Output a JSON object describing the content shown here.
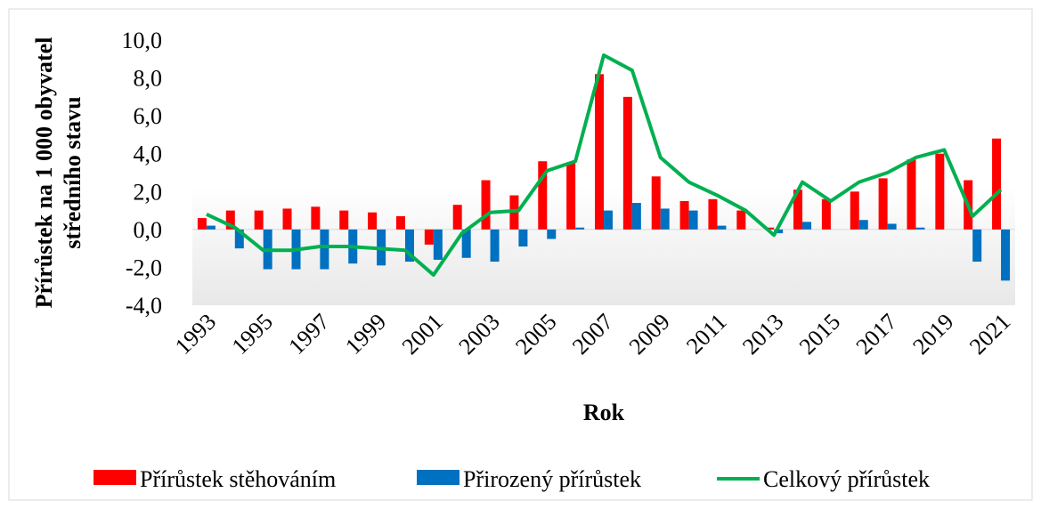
{
  "chart_data": {
    "type": "bar_line",
    "y_label": [
      "Přírůstek na 1 000 obyvatel",
      "středního stavu"
    ],
    "x_label": "Rok",
    "categories": [
      "1993",
      null,
      "1995",
      null,
      "1997",
      null,
      "1999",
      null,
      "2001",
      null,
      "2003",
      null,
      "2005",
      null,
      "2007",
      null,
      "2009",
      null,
      "2011",
      null,
      "2013",
      null,
      "2015",
      null,
      "2017",
      null,
      "2019",
      null,
      "2021"
    ],
    "series": [
      {
        "name": "Přírůstek stěhováním",
        "type": "bar",
        "color": "#ff0000",
        "values": [
          0.6,
          1.0,
          1.0,
          1.1,
          1.2,
          1.0,
          0.9,
          0.7,
          -0.8,
          1.3,
          2.6,
          1.8,
          3.6,
          3.5,
          8.2,
          7.0,
          2.8,
          1.5,
          1.6,
          1.0,
          0.1,
          2.1,
          1.6,
          2.0,
          2.7,
          3.7,
          4.0,
          2.6,
          4.8
        ]
      },
      {
        "name": "Přirozený přírůstek",
        "type": "bar",
        "color": "#0070c0",
        "values": [
          0.2,
          -1.0,
          -2.1,
          -2.1,
          -2.1,
          -1.8,
          -1.9,
          -1.7,
          -1.6,
          -1.5,
          -1.7,
          -0.9,
          -0.5,
          0.1,
          1.0,
          1.4,
          1.1,
          1.0,
          0.2,
          0.0,
          -0.2,
          0.4,
          0.0,
          0.5,
          0.3,
          0.1,
          0.0,
          -1.7,
          -2.7
        ]
      },
      {
        "name": "Celkový přírůstek",
        "type": "line",
        "color": "#00b050",
        "values": [
          0.8,
          0.1,
          -1.1,
          -1.1,
          -0.9,
          -0.9,
          -1.0,
          -1.1,
          -2.4,
          -0.2,
          0.9,
          1.0,
          3.1,
          3.6,
          9.2,
          8.4,
          3.8,
          2.5,
          1.8,
          1.0,
          -0.3,
          2.5,
          1.5,
          2.5,
          3.0,
          3.8,
          4.2,
          0.7,
          2.1
        ]
      }
    ],
    "ylim": [
      -4,
      10
    ],
    "yticks": [
      {
        "value": -4,
        "label": "-4,0"
      },
      {
        "value": -2,
        "label": "-2,0"
      },
      {
        "value": 0,
        "label": "0,0"
      },
      {
        "value": 2,
        "label": "2,0"
      },
      {
        "value": 4,
        "label": "4,0"
      },
      {
        "value": 6,
        "label": "6,0"
      },
      {
        "value": 8,
        "label": "8,0"
      },
      {
        "value": 10,
        "label": "10,0"
      }
    ],
    "legend": "bottom"
  }
}
